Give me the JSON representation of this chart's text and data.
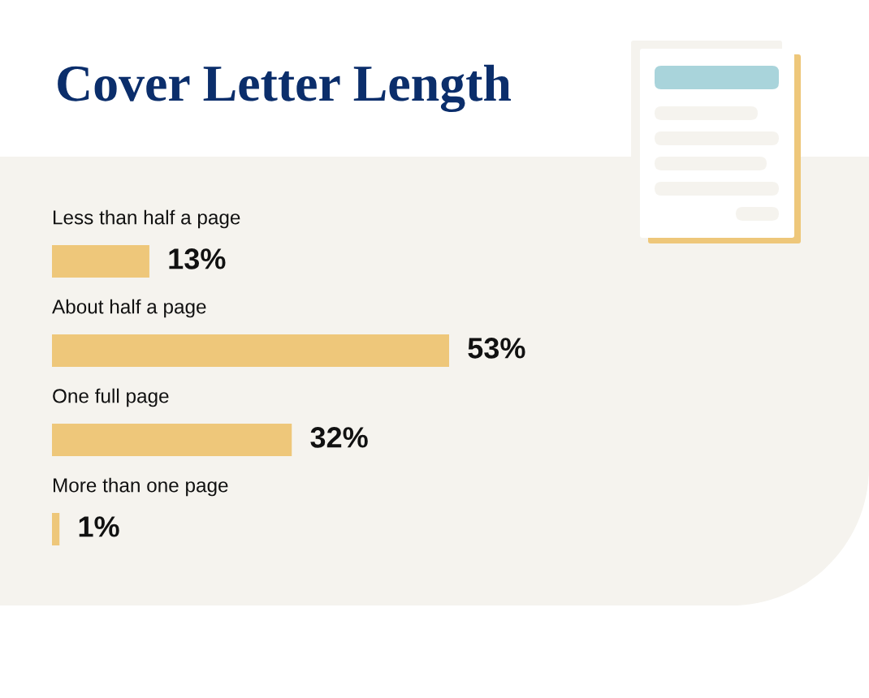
{
  "chart_data": {
    "type": "bar",
    "orientation": "horizontal",
    "title": "Cover Letter Length",
    "categories": [
      "Less than half a page",
      "About half a page",
      "One full page",
      "More than one page"
    ],
    "values": [
      13,
      53,
      32,
      1
    ],
    "value_labels": [
      "13%",
      "53%",
      "32%",
      "1%"
    ],
    "color": "#eec77a"
  }
}
